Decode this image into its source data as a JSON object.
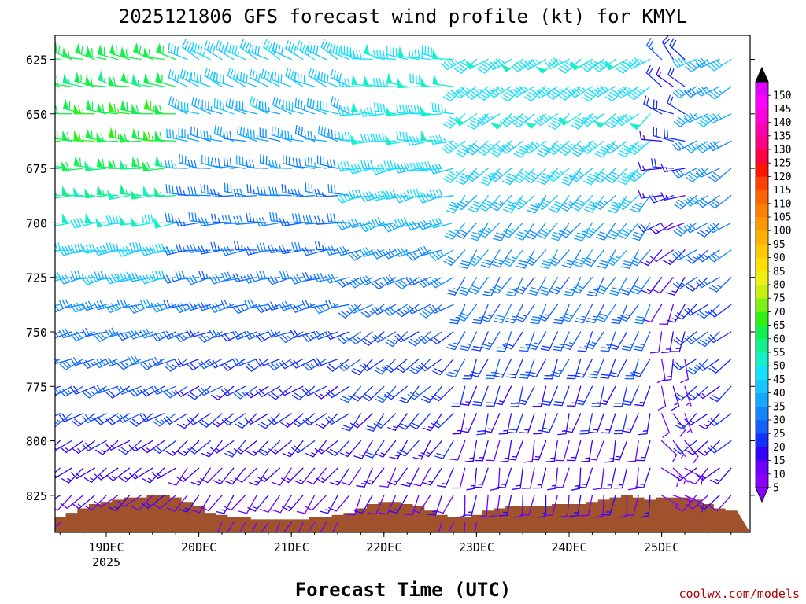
{
  "chart_data": {
    "type": "wind-barb-profile",
    "title": "2025121806 GFS forecast wind profile (kt) for KMYL",
    "xlabel": "Forecast Time (UTC)",
    "ylabel": "",
    "credit": "coolwx.com/models",
    "y_axis": {
      "inverted": true,
      "ylim": [
        614,
        842
      ],
      "ticks": [
        625,
        650,
        675,
        700,
        725,
        750,
        775,
        800,
        825
      ]
    },
    "x_axis": {
      "range_hours": [
        0,
        180
      ],
      "ticks": [
        {
          "label": "19DEC",
          "sublabel": "2025",
          "hour": 18
        },
        {
          "label": "20DEC",
          "sublabel": "",
          "hour": 42
        },
        {
          "label": "21DEC",
          "sublabel": "",
          "hour": 66
        },
        {
          "label": "22DEC",
          "sublabel": "",
          "hour": 90
        },
        {
          "label": "23DEC",
          "sublabel": "",
          "hour": 114
        },
        {
          "label": "24DEC",
          "sublabel": "",
          "hour": 138
        },
        {
          "label": "25DEC",
          "sublabel": "",
          "hour": 162
        }
      ]
    },
    "levels": [
      625,
      637.5,
      650,
      662.5,
      675,
      687.5,
      700,
      712.5,
      725,
      737.5,
      750,
      762.5,
      775,
      787.5,
      800,
      812.5,
      825,
      837.5
    ],
    "time_step_hours": 3,
    "regimes": [
      {
        "start_hour": 0,
        "end_hour": 36,
        "dir_top": 285,
        "dir_bottom": 225,
        "speed_top": 58,
        "speed_bottom": 10,
        "peak_level": 660,
        "peak_speed": 62
      },
      {
        "start_hour": 39,
        "end_hour": 81,
        "dir_top": 300,
        "dir_bottom": 210,
        "speed_top": 43,
        "speed_bottom": 10,
        "peak_level": 700,
        "peak_speed": 28
      },
      {
        "start_hour": 84,
        "end_hour": 108,
        "dir_top": 280,
        "dir_bottom": 200,
        "speed_top": 50,
        "speed_bottom": 8,
        "peak_level": 650,
        "peak_speed": 46
      },
      {
        "start_hour": 111,
        "end_hour": 159,
        "dir_top": 235,
        "dir_bottom": 185,
        "speed_top": 45,
        "speed_bottom": 8,
        "peak_level": 650,
        "peak_speed": 46
      },
      {
        "start_hour": 162,
        "end_hour": 168,
        "dir_top": 320,
        "dir_bottom": 100,
        "speed_top": 20,
        "speed_bottom": 6,
        "peak_level": 625,
        "peak_speed": 20
      },
      {
        "start_hour": 171,
        "end_hour": 180,
        "dir_top": 240,
        "dir_bottom": 225,
        "speed_top": 35,
        "speed_bottom": 12,
        "peak_level": 650,
        "peak_speed": 35
      }
    ],
    "terrain": {
      "color": "#a0522d",
      "hours": [
        0,
        3,
        6,
        9,
        12,
        15,
        18,
        21,
        24,
        27,
        30,
        33,
        36,
        39,
        42,
        45,
        48,
        51,
        54,
        57,
        60,
        63,
        66,
        69,
        72,
        75,
        78,
        81,
        84,
        87,
        90,
        93,
        96,
        99,
        102,
        105,
        108,
        111,
        114,
        117,
        120,
        123,
        126,
        129,
        132,
        135,
        138,
        141,
        144,
        147,
        150,
        153,
        156,
        159,
        162,
        165,
        168,
        171,
        174,
        177,
        180
      ],
      "pressure": [
        839,
        837,
        835,
        833,
        831,
        829,
        828,
        827,
        826,
        826,
        825,
        825,
        826,
        828,
        830,
        833,
        834,
        835,
        835,
        836,
        836,
        836,
        836,
        836,
        835,
        835,
        834,
        833,
        831,
        829,
        828,
        828,
        829,
        830,
        832,
        834,
        835,
        835,
        834,
        832,
        831,
        830,
        830,
        830,
        830,
        829,
        829,
        829,
        828,
        827,
        826,
        825,
        826,
        827,
        826,
        826,
        826,
        827,
        829,
        831,
        832
      ]
    },
    "colorbar": {
      "ticks": [
        5,
        10,
        15,
        20,
        25,
        30,
        35,
        40,
        45,
        50,
        55,
        60,
        65,
        70,
        75,
        80,
        85,
        90,
        95,
        100,
        105,
        110,
        115,
        120,
        125,
        130,
        135,
        140,
        145,
        150
      ],
      "colors": [
        "#8a00ff",
        "#6f00ff",
        "#3300ff",
        "#1430ff",
        "#1460ff",
        "#1485ff",
        "#14a8ff",
        "#14c8ff",
        "#14e0ff",
        "#14f0c8",
        "#14f090",
        "#14f050",
        "#30f014",
        "#80f014",
        "#c8f014",
        "#f0f014",
        "#ffe000",
        "#ffc800",
        "#ffb000",
        "#ff9800",
        "#ff8000",
        "#ff6400",
        "#ff4000",
        "#ff1400",
        "#ff0040",
        "#ff0080",
        "#ff00b0",
        "#ff00d8",
        "#ff00ff",
        "#e000ff"
      ]
    }
  }
}
